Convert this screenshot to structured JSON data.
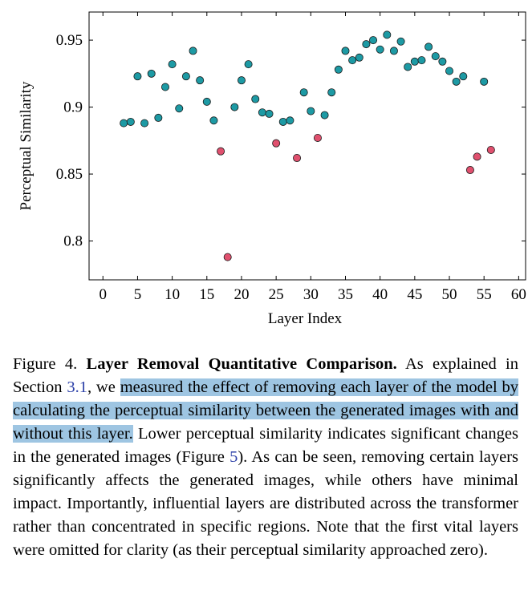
{
  "chart_data": {
    "type": "scatter",
    "xlabel": "Layer Index",
    "ylabel": "Perceptual Similarity",
    "xlim": [
      -2,
      61
    ],
    "ylim": [
      0.771,
      0.971
    ],
    "x_ticks": [
      0,
      5,
      10,
      15,
      20,
      25,
      30,
      35,
      40,
      45,
      50,
      55,
      60
    ],
    "y_ticks": [
      0.8,
      0.85,
      0.9,
      0.95
    ],
    "y_tick_labels": [
      "0.8",
      "0.85",
      "0.9",
      "0.95"
    ],
    "grid": false,
    "colors": {
      "normal": "#1d9aa4",
      "vital": "#e0506e"
    },
    "series": [
      {
        "x": [
          3,
          4,
          5,
          6,
          7,
          8,
          9,
          10,
          11,
          12,
          13,
          14,
          15,
          16,
          19,
          20,
          21,
          22,
          23,
          24,
          26,
          27,
          29,
          30,
          32,
          33,
          34,
          35,
          36,
          37,
          38,
          39,
          40,
          41,
          42,
          43,
          44,
          45,
          46,
          47,
          48,
          49,
          50,
          51,
          52,
          55
        ],
        "y": [
          0.888,
          0.889,
          0.923,
          0.888,
          0.925,
          0.892,
          0.915,
          0.932,
          0.899,
          0.923,
          0.942,
          0.92,
          0.904,
          0.89,
          0.9,
          0.92,
          0.932,
          0.906,
          0.896,
          0.895,
          0.889,
          0.89,
          0.911,
          0.897,
          0.894,
          0.911,
          0.928,
          0.942,
          0.935,
          0.937,
          0.947,
          0.95,
          0.943,
          0.954,
          0.942,
          0.949,
          0.93,
          0.934,
          0.935,
          0.945,
          0.938,
          0.934,
          0.927,
          0.919,
          0.923,
          0.919
        ]
      },
      {
        "x": [
          17,
          18,
          25,
          28,
          31,
          53,
          54,
          56
        ],
        "y": [
          0.867,
          0.788,
          0.873,
          0.862,
          0.877,
          0.853,
          0.863,
          0.868
        ]
      }
    ]
  },
  "caption": {
    "figure_label": "Figure 4.",
    "title": "Layer Removal Quantitative Comparison.",
    "text1": "As explained in Section",
    "ref1": "3.1",
    "text2": ", we",
    "highlight": "measured the effect of removing each layer of the model by calculating the perceptual similarity between the generated images with and without this layer.",
    "text3": "Lower perceptual similarity indicates significant changes in the generated images (Figure",
    "ref2": "5",
    "text4": "). As can be seen, removing certain layers significantly affects the generated images, while others have minimal impact. Importantly, influential layers are distributed across the transformer rather than concentrated in specific regions. Note that the first vital layers were omitted for clarity (as their perceptual similarity approached zero)."
  }
}
